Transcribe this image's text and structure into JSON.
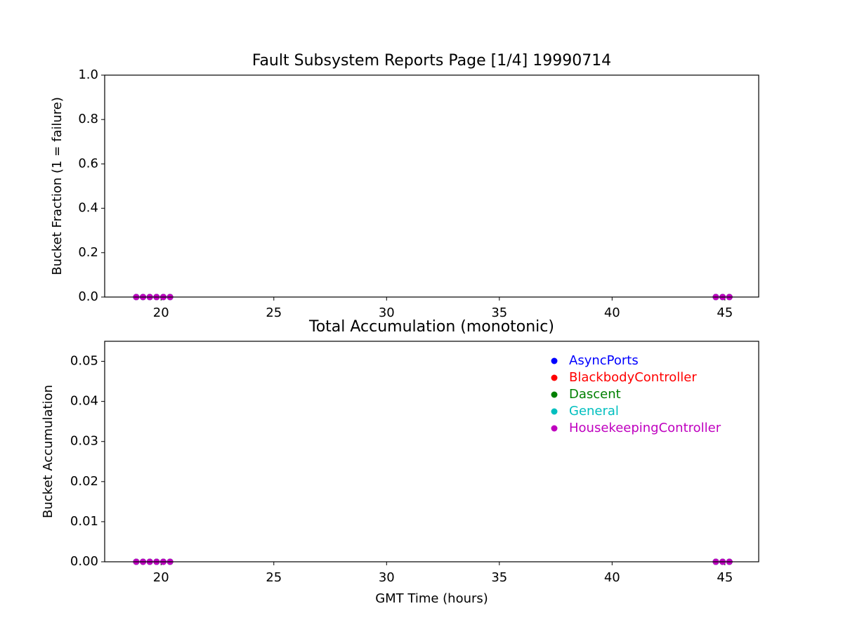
{
  "chart_data": [
    {
      "type": "scatter",
      "title": "Fault Subsystem Reports Page [1/4] 19990714",
      "y_label": "Bucket Fraction (1 = failure)",
      "x": [
        18.9,
        19.2,
        19.5,
        19.8,
        20.1,
        20.4,
        44.6,
        44.9,
        45.2
      ],
      "series": [
        {
          "name": "AsyncPorts",
          "color": "#0000ff",
          "values": [
            0,
            0,
            0,
            0,
            0,
            0,
            0,
            0,
            0
          ]
        },
        {
          "name": "BlackbodyController",
          "color": "#ff0000",
          "values": [
            0,
            0,
            0,
            0,
            0,
            0,
            0,
            0,
            0
          ]
        },
        {
          "name": "Dascent",
          "color": "#008000",
          "values": [
            0,
            0,
            0,
            0,
            0,
            0,
            0,
            0,
            0
          ]
        },
        {
          "name": "General",
          "color": "#00bfbf",
          "values": [
            0,
            0,
            0,
            0,
            0,
            0,
            0,
            0,
            0
          ]
        },
        {
          "name": "HousekeepingController",
          "color": "#bf00bf",
          "values": [
            0,
            0,
            0,
            0,
            0,
            0,
            0,
            0,
            0
          ]
        }
      ],
      "xlim": [
        17.5,
        46.5
      ],
      "xticks": [
        20,
        25,
        30,
        35,
        40,
        45
      ],
      "ylim": [
        0,
        1
      ],
      "yticks": [
        {
          "value": 0,
          "label": "0.0"
        },
        0.2,
        0.4,
        0.6,
        0.8,
        {
          "value": 1,
          "label": "1.0"
        }
      ],
      "legend": false
    },
    {
      "type": "scatter",
      "title": "Total Accumulation (monotonic)",
      "x_label": "GMT Time (hours)",
      "y_label": "Bucket Accumulation",
      "x": [
        18.9,
        19.2,
        19.5,
        19.8,
        20.1,
        20.4,
        44.6,
        44.9,
        45.2
      ],
      "series": [
        {
          "name": "AsyncPorts",
          "color": "#0000ff",
          "values": [
            0,
            0,
            0,
            0,
            0,
            0,
            0,
            0,
            0
          ]
        },
        {
          "name": "BlackbodyController",
          "color": "#ff0000",
          "values": [
            0,
            0,
            0,
            0,
            0,
            0,
            0,
            0,
            0
          ]
        },
        {
          "name": "Dascent",
          "color": "#008000",
          "values": [
            0,
            0,
            0,
            0,
            0,
            0,
            0,
            0,
            0
          ]
        },
        {
          "name": "General",
          "color": "#00bfbf",
          "values": [
            0,
            0,
            0,
            0,
            0,
            0,
            0,
            0,
            0
          ]
        },
        {
          "name": "HousekeepingController",
          "color": "#bf00bf",
          "values": [
            0,
            0,
            0,
            0,
            0,
            0,
            0,
            0,
            0
          ]
        }
      ],
      "xlim": [
        17.5,
        46.5
      ],
      "xticks": [
        20,
        25,
        30,
        35,
        40,
        45
      ],
      "ylim": [
        0,
        0.055
      ],
      "yticks": [
        {
          "value": 0,
          "label": "0.00"
        },
        0.01,
        0.02,
        0.03,
        0.04,
        0.05
      ],
      "legend": "upper right"
    }
  ]
}
